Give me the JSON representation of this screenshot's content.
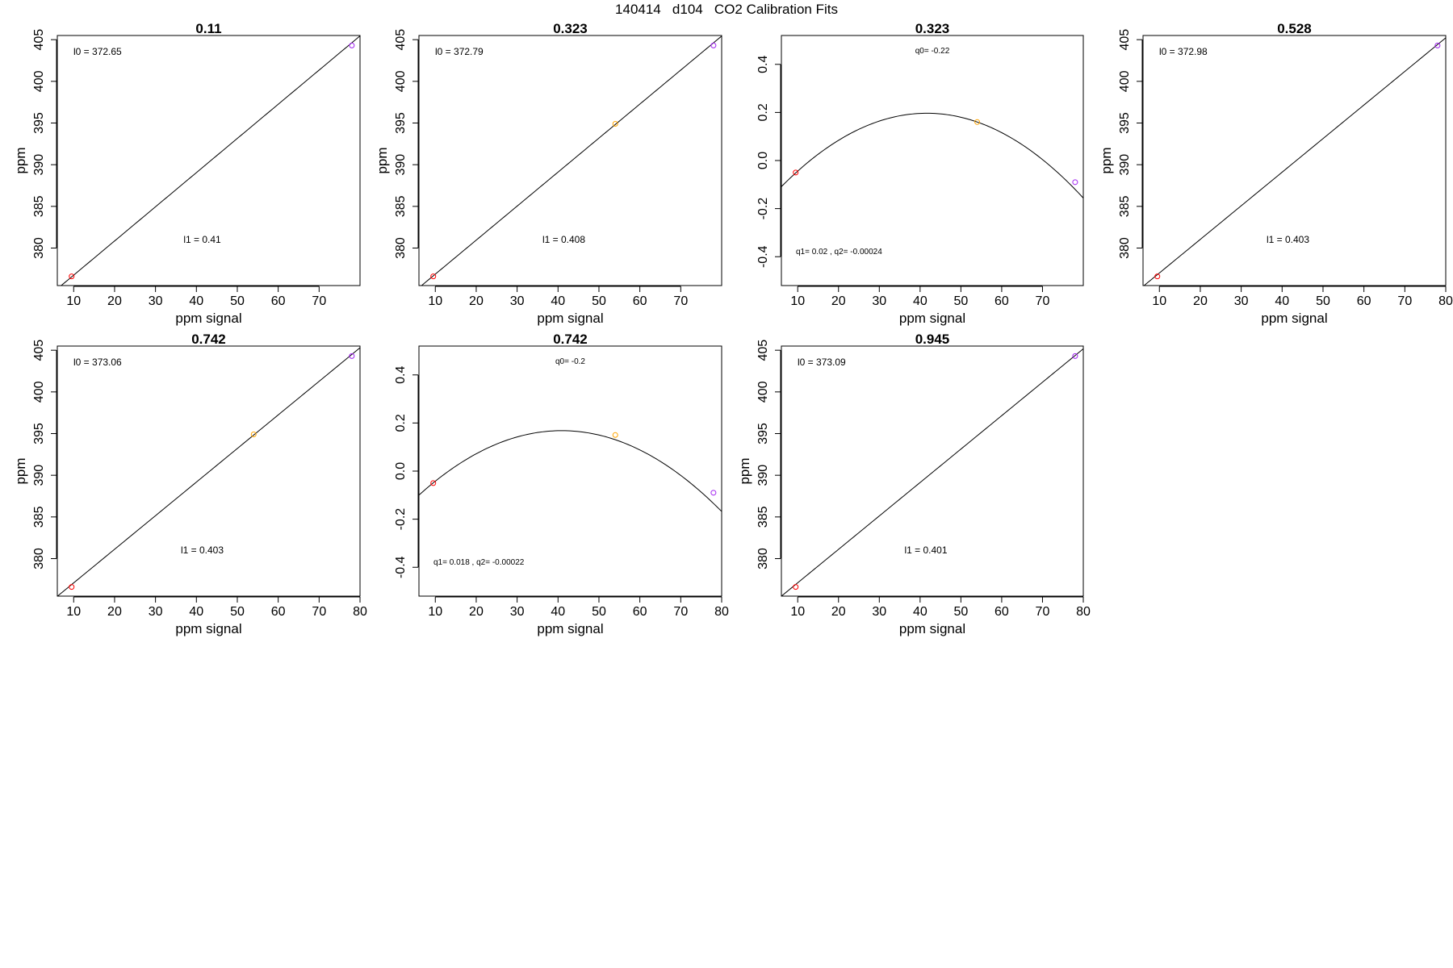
{
  "figure": {
    "title": "140414   d104   CO2 Calibration Fits"
  },
  "colors": {
    "low_point": "#ff0000",
    "mid_point": "#ffa500",
    "high_point": "#a020f0",
    "line": "#000000",
    "frame": "#000000"
  },
  "chart_data": [
    {
      "type": "scatter",
      "fit": "linear",
      "title": "0.11",
      "xlabel": "ppm signal",
      "ylabel": "ppm",
      "xlim": [
        6,
        80
      ],
      "ylim": [
        375.5,
        405.5
      ],
      "xticks": [
        10,
        20,
        30,
        40,
        50,
        60,
        70
      ],
      "yticks": [
        380,
        385,
        390,
        395,
        400,
        405
      ],
      "series": [
        {
          "x": [
            9.5,
            78
          ],
          "y": [
            376.6,
            404.3
          ]
        }
      ],
      "coef_label": "l0 =  372.65",
      "coef_label2": "l1 =  0.41",
      "fit_line": {
        "intercept": 372.65,
        "slope": 0.41
      }
    },
    {
      "type": "scatter",
      "fit": "linear",
      "title": "0.323",
      "xlabel": "ppm signal",
      "ylabel": "ppm",
      "xlim": [
        6,
        80
      ],
      "ylim": [
        375.5,
        405.5
      ],
      "xticks": [
        10,
        20,
        30,
        40,
        50,
        60,
        70
      ],
      "yticks": [
        380,
        385,
        390,
        395,
        400,
        405
      ],
      "series": [
        {
          "x": [
            9.5,
            54,
            78
          ],
          "y": [
            376.6,
            394.9,
            404.3
          ]
        }
      ],
      "coef_label": "l0 =  372.79",
      "coef_label2": "l1 =  0.408",
      "fit_line": {
        "intercept": 372.79,
        "slope": 0.408
      }
    },
    {
      "type": "scatter",
      "fit": "quadratic",
      "title": "0.323",
      "xlabel": "ppm signal",
      "ylabel": "",
      "xlim": [
        6,
        80
      ],
      "ylim": [
        -0.52,
        0.52
      ],
      "xticks": [
        10,
        20,
        30,
        40,
        50,
        60,
        70
      ],
      "yticks": [
        -0.4,
        -0.2,
        0.0,
        0.2,
        0.4
      ],
      "ytick_labels": [
        "-0.4",
        "-0.2",
        "0.0",
        "0.2",
        "0.4"
      ],
      "series": [
        {
          "x": [
            9.5,
            54,
            78
          ],
          "y": [
            -0.05,
            0.16,
            -0.09
          ]
        }
      ],
      "coef_label": "q0= -0.22",
      "coef_label2": "q1= 0.02 , q2= -0.00024",
      "fit_curve": {
        "q0": -0.22,
        "q1": 0.02,
        "q2": -0.00024
      }
    },
    {
      "type": "scatter",
      "fit": "linear",
      "title": "0.528",
      "xlabel": "ppm signal",
      "ylabel": "ppm",
      "xlim": [
        6,
        80
      ],
      "ylim": [
        375.5,
        405.5
      ],
      "xticks": [
        10,
        20,
        30,
        40,
        50,
        60,
        70,
        80
      ],
      "yticks": [
        380,
        385,
        390,
        395,
        400,
        405
      ],
      "series": [
        {
          "x": [
            9.5,
            78
          ],
          "y": [
            376.6,
            404.3
          ]
        }
      ],
      "coef_label": "l0 =  372.98",
      "coef_label2": "l1 =  0.403",
      "fit_line": {
        "intercept": 372.98,
        "slope": 0.403
      }
    },
    {
      "type": "scatter",
      "fit": "linear",
      "title": "0.742",
      "xlabel": "ppm signal",
      "ylabel": "ppm",
      "xlim": [
        6,
        80
      ],
      "ylim": [
        375.5,
        405.5
      ],
      "xticks": [
        10,
        20,
        30,
        40,
        50,
        60,
        70,
        80
      ],
      "yticks": [
        380,
        385,
        390,
        395,
        400,
        405
      ],
      "series": [
        {
          "x": [
            9.5,
            54,
            78
          ],
          "y": [
            376.6,
            394.9,
            404.3
          ]
        }
      ],
      "coef_label": "l0 =  373.06",
      "coef_label2": "l1 =  0.403",
      "fit_line": {
        "intercept": 373.06,
        "slope": 0.403
      }
    },
    {
      "type": "scatter",
      "fit": "quadratic",
      "title": "0.742",
      "xlabel": "ppm signal",
      "ylabel": "",
      "xlim": [
        6,
        80
      ],
      "ylim": [
        -0.52,
        0.52
      ],
      "xticks": [
        10,
        20,
        30,
        40,
        50,
        60,
        70,
        80
      ],
      "yticks": [
        -0.4,
        -0.2,
        0.0,
        0.2,
        0.4
      ],
      "ytick_labels": [
        "-0.4",
        "-0.2",
        "0.0",
        "0.2",
        "0.4"
      ],
      "series": [
        {
          "x": [
            9.5,
            54,
            78
          ],
          "y": [
            -0.05,
            0.15,
            -0.09
          ]
        }
      ],
      "coef_label": "q0= -0.2",
      "coef_label2": "q1= 0.018 , q2= -0.00022",
      "fit_curve": {
        "q0": -0.2,
        "q1": 0.018,
        "q2": -0.00022
      }
    },
    {
      "type": "scatter",
      "fit": "linear",
      "title": "0.945",
      "xlabel": "ppm signal",
      "ylabel": "ppm",
      "xlim": [
        6,
        80
      ],
      "ylim": [
        375.5,
        405.5
      ],
      "xticks": [
        10,
        20,
        30,
        40,
        50,
        60,
        70,
        80
      ],
      "yticks": [
        380,
        385,
        390,
        395,
        400,
        405
      ],
      "series": [
        {
          "x": [
            9.5,
            78
          ],
          "y": [
            376.6,
            404.3
          ]
        }
      ],
      "coef_label": "l0 =  373.09",
      "coef_label2": "l1 =  0.401",
      "fit_line": {
        "intercept": 373.09,
        "slope": 0.401
      }
    }
  ]
}
